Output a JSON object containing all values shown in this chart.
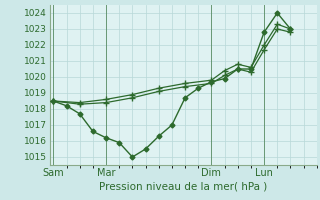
{
  "background_color": "#cde8e8",
  "plot_bg_color": "#dff2f2",
  "grid_color": "#b8d8d8",
  "line_color": "#2d6a2d",
  "border_color": "#8aaa8a",
  "title": "Pression niveau de la mer( hPa )",
  "ylim": [
    1014.5,
    1024.5
  ],
  "yticks": [
    1015,
    1016,
    1017,
    1018,
    1019,
    1020,
    1021,
    1022,
    1023,
    1024
  ],
  "xtick_labels": [
    "Sam",
    "Mar",
    "Dim",
    "Lun"
  ],
  "xtick_positions": [
    0,
    28,
    84,
    112
  ],
  "vline_positions": [
    0,
    28,
    84,
    112
  ],
  "xlim": [
    -2,
    140
  ],
  "series1": {
    "x": [
      0,
      7,
      14,
      21,
      28,
      35,
      42,
      49,
      56,
      63,
      70,
      77,
      84,
      91,
      98,
      105,
      112,
      119,
      126
    ],
    "y": [
      1018.5,
      1018.2,
      1017.7,
      1016.6,
      1016.2,
      1015.9,
      1015.0,
      1015.5,
      1016.3,
      1017.0,
      1018.7,
      1019.3,
      1019.7,
      1019.9,
      1020.5,
      1020.5,
      1022.8,
      1024.0,
      1023.0
    ],
    "marker": "D",
    "markersize": 2.5,
    "linewidth": 1.0
  },
  "series2": {
    "x": [
      0,
      14,
      28,
      42,
      56,
      70,
      84,
      91,
      98,
      105,
      112,
      119,
      126
    ],
    "y": [
      1018.5,
      1018.4,
      1018.6,
      1018.9,
      1019.3,
      1019.6,
      1019.8,
      1020.4,
      1020.8,
      1020.6,
      1022.0,
      1023.3,
      1023.0
    ],
    "marker": "P",
    "markersize": 3,
    "linewidth": 0.9
  },
  "series3": {
    "x": [
      0,
      14,
      28,
      42,
      56,
      70,
      84,
      91,
      98,
      105,
      112,
      119,
      126
    ],
    "y": [
      1018.5,
      1018.3,
      1018.4,
      1018.7,
      1019.1,
      1019.4,
      1019.6,
      1020.1,
      1020.5,
      1020.3,
      1021.7,
      1023.0,
      1022.8
    ],
    "marker": "P",
    "markersize": 3,
    "linewidth": 0.9
  }
}
